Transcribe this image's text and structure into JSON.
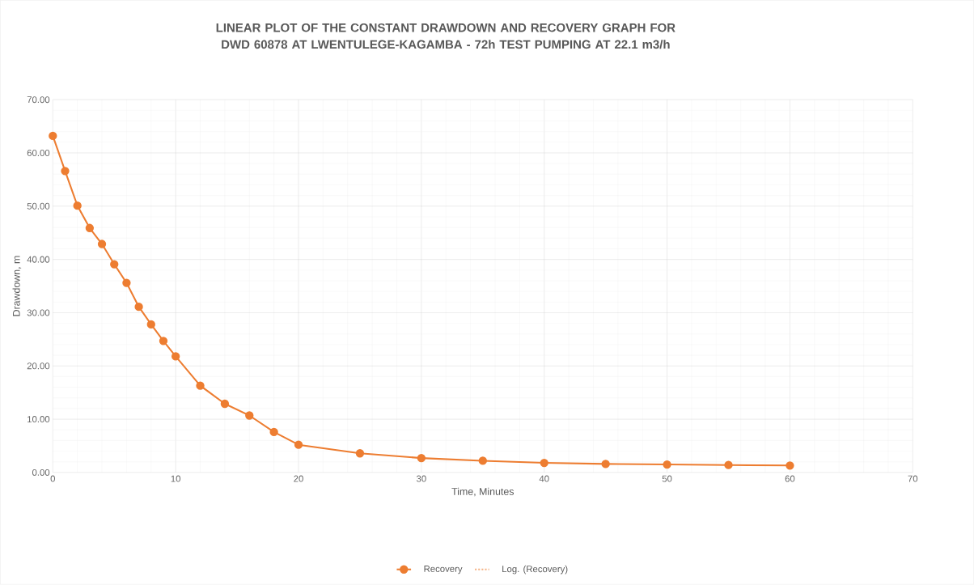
{
  "chart_data": {
    "type": "line",
    "title": "LINEAR PLOT OF THE CONSTANT DRAWDOWN AND RECOVERY GRAPH FOR DWD 60878 AT LWENTULEGE-KAGAMBA - 72h TEST PUMPING AT 22.1 m3/h",
    "xlabel": "Time, Minutes",
    "ylabel": "Drawdown, m",
    "x": [
      0,
      1,
      2,
      3,
      4,
      5,
      6,
      7,
      8,
      9,
      10,
      12,
      14,
      16,
      18,
      20,
      25,
      30,
      35,
      40,
      45,
      50,
      55,
      60
    ],
    "series": [
      {
        "name": "Recovery",
        "color": "#ed7d31",
        "marker": "circle",
        "line_style": "solid",
        "values": [
          63.2,
          56.6,
          50.1,
          45.9,
          42.9,
          39.1,
          35.6,
          31.1,
          27.8,
          24.7,
          21.8,
          16.3,
          12.9,
          10.7,
          7.6,
          5.2,
          3.6,
          2.7,
          2.2,
          1.8,
          1.6,
          1.5,
          1.4,
          1.3
        ]
      },
      {
        "name": "Log. (Recovery)",
        "color": "#f4b183",
        "marker": "none",
        "line_style": "dotted",
        "values": [
          null,
          null,
          null,
          null,
          null,
          null,
          null,
          null,
          null,
          null,
          null,
          null,
          null,
          null,
          null,
          null,
          null,
          null,
          null,
          null,
          null,
          null,
          null,
          null
        ]
      }
    ],
    "xlim": [
      0,
      70
    ],
    "xticks": [
      0,
      10,
      20,
      30,
      40,
      50,
      60,
      70
    ],
    "ylim": [
      0,
      70
    ],
    "yticks": [
      {
        "value": 0,
        "label": "0.00"
      },
      {
        "value": 10,
        "label": "10.00"
      },
      {
        "value": 20,
        "label": "20.00"
      },
      {
        "value": 30,
        "label": "30.00"
      },
      {
        "value": 40,
        "label": "40.00"
      },
      {
        "value": 50,
        "label": "50.00"
      },
      {
        "value": 60,
        "label": "60.00"
      },
      {
        "value": 70,
        "label": "70.00"
      }
    ],
    "grid": true,
    "legend": "bottom"
  }
}
